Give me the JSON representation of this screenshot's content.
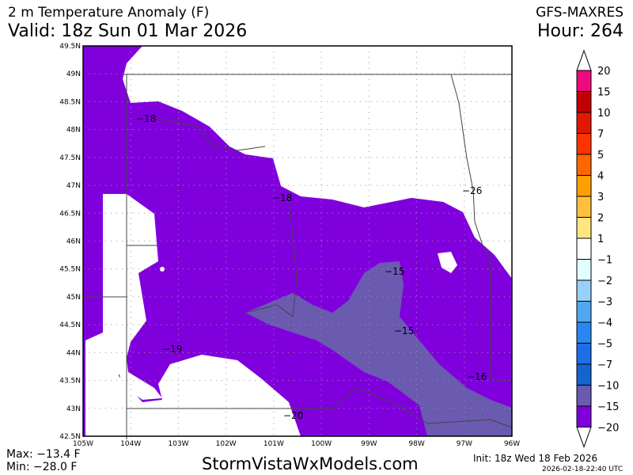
{
  "header": {
    "title": "2 m Temperature Anomaly (F)",
    "valid": "Valid: 18z Sun 01 Mar 2026",
    "model": "GFS-MAXRES",
    "hour": "Hour: 264"
  },
  "footer": {
    "max": "Max: −13.4 F",
    "min": "Min: −28.0 F",
    "site": "StormVistaWxModels.com",
    "init": "Init: 18z Wed 18 Feb 2026",
    "stamp": "2026-02-18-22:40 UTC"
  },
  "map": {
    "lat_labels": [
      "49.5N",
      "49N",
      "48.5N",
      "48N",
      "47.5N",
      "47N",
      "46.5N",
      "46N",
      "45.5N",
      "45N",
      "44.5N",
      "44N",
      "43.5N",
      "43N",
      "42.5N"
    ],
    "lon_labels": [
      "105W",
      "104W",
      "103W",
      "102W",
      "101W",
      "100W",
      "99W",
      "98W",
      "97W",
      "96W"
    ],
    "contour_labels": [
      "−18",
      "−18",
      "−26",
      "−15",
      "−15",
      "−19",
      "−16",
      "−20"
    ],
    "colors": {
      "below_minus15": "#8000dd",
      "minus15_to_minus10": "#6a5ab0",
      "neutral": "#ffffff"
    }
  },
  "legend": {
    "labels": [
      "20",
      "15",
      "10",
      "7",
      "5",
      "4",
      "3",
      "2",
      "1",
      "−1",
      "−2",
      "−3",
      "−4",
      "−5",
      "−7",
      "−10",
      "−15",
      "−20"
    ],
    "colors": [
      "#f0087f",
      "#c00000",
      "#e01800",
      "#ff3300",
      "#ff6600",
      "#ffa000",
      "#ffc040",
      "#ffe680",
      "#ffffff",
      "#e0ffff",
      "#98d0f8",
      "#50a8f0",
      "#2888f0",
      "#1e6ee8",
      "#1464d0",
      "#6a5ab0",
      "#8000dd"
    ]
  }
}
